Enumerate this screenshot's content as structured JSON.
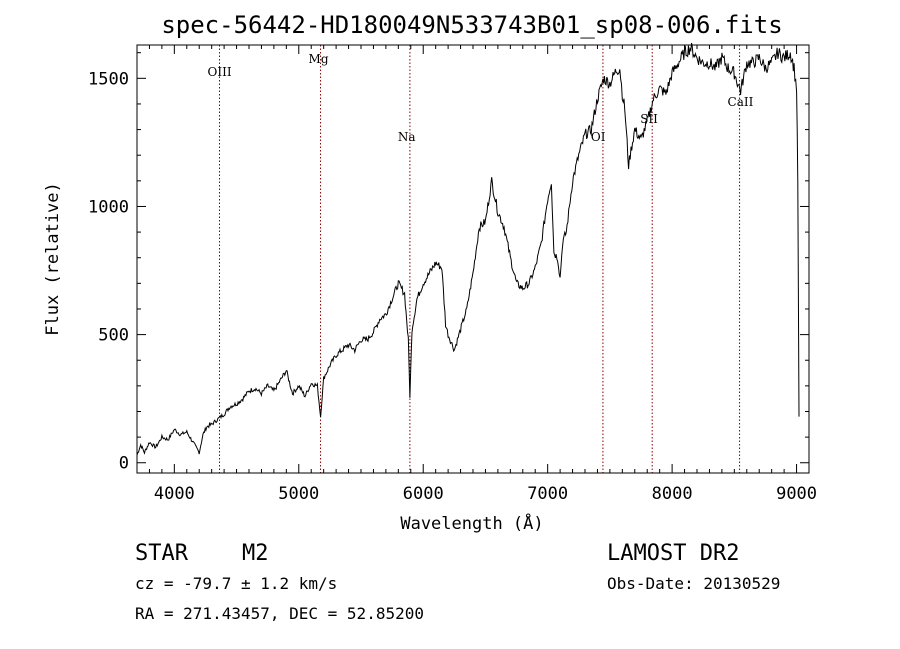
{
  "header": {
    "title": "spec-56442-HD180049N533743B01_sp08-006.fits"
  },
  "info": {
    "object_type": "STAR",
    "subclass": "M2",
    "cz": "cz = -79.7 ± 1.2 km/s",
    "coords": "RA = 271.43457, DEC =  52.85200",
    "survey": "LAMOST DR2",
    "obs_date": "Obs-Date: 20130529"
  },
  "chart_data": {
    "type": "line",
    "title": "spec-56442-HD180049N533743B01_sp08-006.fits",
    "xlabel": "Wavelength (Å)",
    "ylabel": "Flux (relative)",
    "xlim": [
      3700,
      9100
    ],
    "ylim": [
      -40,
      1630
    ],
    "x_ticks": [
      4000,
      5000,
      6000,
      7000,
      8000,
      9000
    ],
    "y_ticks": [
      0,
      500,
      1000,
      1500
    ],
    "grid": false,
    "legend": "none",
    "line_color": "#000000",
    "marker_color": "#8b0000",
    "spectral_lines": [
      {
        "label": "OIII",
        "x": 4363
      },
      {
        "label": "Mg",
        "x": 5175
      },
      {
        "label": "Na",
        "x": 5893
      },
      {
        "label": "OI",
        "x": 7444
      },
      {
        "label": "SII",
        "x": 7840
      },
      {
        "label": "CaII",
        "x": 8542
      }
    ],
    "series": [
      {
        "x": [
          3700,
          3730,
          3760,
          3800,
          3850,
          3900,
          3950,
          4000,
          4050,
          4100,
          4150,
          4200,
          4230,
          4260,
          4300,
          4350,
          4400,
          4450,
          4500,
          4550,
          4600,
          4650,
          4700,
          4750,
          4800,
          4850,
          4900,
          4950,
          5000,
          5050,
          5100,
          5150,
          5175,
          5200,
          5250,
          5300,
          5350,
          5400,
          5450,
          5500,
          5550,
          5600,
          5650,
          5700,
          5750,
          5800,
          5850,
          5880,
          5893,
          5910,
          5950,
          6000,
          6050,
          6100,
          6150,
          6180,
          6200,
          6250,
          6300,
          6350,
          6400,
          6450,
          6500,
          6550,
          6600,
          6650,
          6700,
          6750,
          6800,
          6850,
          6900,
          6950,
          7000,
          7030,
          7050,
          7080,
          7100,
          7120,
          7150,
          7200,
          7250,
          7300,
          7350,
          7400,
          7450,
          7500,
          7550,
          7580,
          7600,
          7620,
          7650,
          7670,
          7700,
          7750,
          7800,
          7850,
          7900,
          7950,
          8000,
          8050,
          8100,
          8150,
          8200,
          8250,
          8300,
          8350,
          8400,
          8450,
          8500,
          8550,
          8600,
          8650,
          8700,
          8750,
          8800,
          8850,
          8900,
          8950,
          8980,
          9000,
          9010,
          9020
        ],
        "y": [
          30,
          70,
          40,
          80,
          60,
          100,
          90,
          130,
          110,
          120,
          80,
          40,
          110,
          140,
          150,
          170,
          190,
          220,
          230,
          250,
          280,
          290,
          270,
          300,
          280,
          320,
          360,
          270,
          300,
          260,
          310,
          300,
          180,
          330,
          380,
          420,
          440,
          460,
          440,
          480,
          480,
          510,
          560,
          580,
          640,
          700,
          660,
          480,
          260,
          520,
          640,
          700,
          740,
          780,
          760,
          540,
          500,
          440,
          520,
          600,
          740,
          920,
          940,
          1100,
          980,
          920,
          800,
          700,
          680,
          700,
          760,
          860,
          1030,
          1100,
          820,
          800,
          720,
          860,
          900,
          1100,
          1200,
          1280,
          1300,
          1420,
          1500,
          1480,
          1530,
          1540,
          1440,
          1380,
          1160,
          1220,
          1300,
          1260,
          1330,
          1420,
          1460,
          1440,
          1520,
          1560,
          1600,
          1620,
          1580,
          1560,
          1560,
          1540,
          1580,
          1540,
          1520,
          1450,
          1560,
          1560,
          1580,
          1540,
          1560,
          1600,
          1580,
          1600,
          1540,
          1460,
          1100,
          180
        ]
      }
    ]
  }
}
